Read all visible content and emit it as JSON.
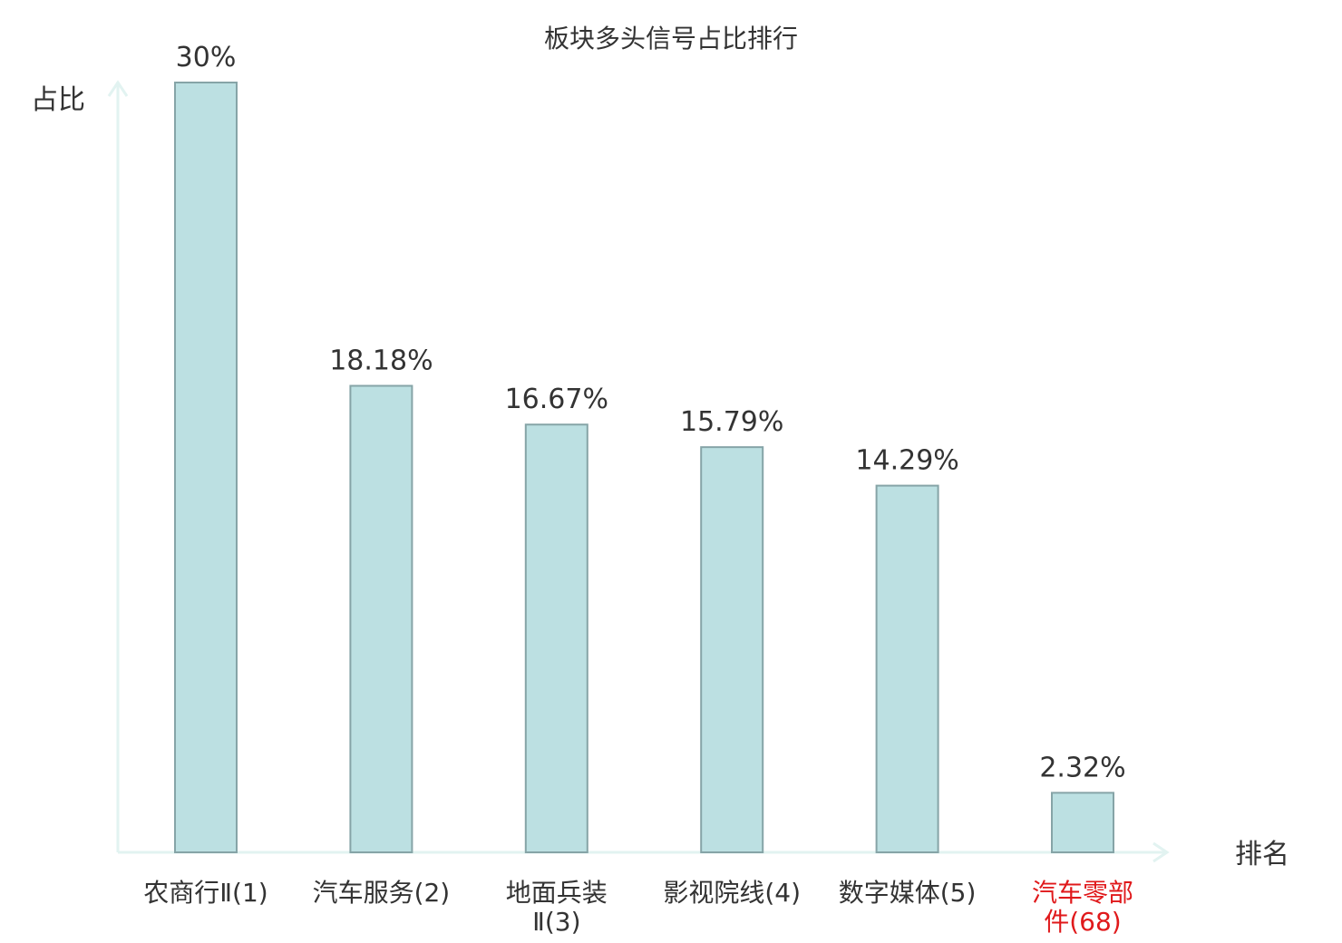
{
  "chart_data": {
    "type": "bar",
    "title": "板块多头信号占比排行",
    "ylabel": "占比",
    "xlabel": "排名",
    "categories": [
      [
        "农商行Ⅱ(1)"
      ],
      [
        "汽车服务(2)"
      ],
      [
        "地面兵装",
        "Ⅱ(3)"
      ],
      [
        "影视院线(4)"
      ],
      [
        "数字媒体(5)"
      ],
      [
        "汽车零部",
        "件(68)"
      ]
    ],
    "values": [
      30,
      18.18,
      16.67,
      15.79,
      14.29,
      2.32
    ],
    "value_labels": [
      "30%",
      "18.18%",
      "16.67%",
      "15.79%",
      "14.29%",
      "2.32%"
    ],
    "highlight_index": 5,
    "ylim": [
      0,
      30
    ],
    "grid": false,
    "legend": "none",
    "colors": {
      "bar_fill": "#bce0e2",
      "bar_stroke": "#86a4a7",
      "axis": "#e2f3f1",
      "text": "#333333",
      "highlight": "#e0191b"
    }
  }
}
